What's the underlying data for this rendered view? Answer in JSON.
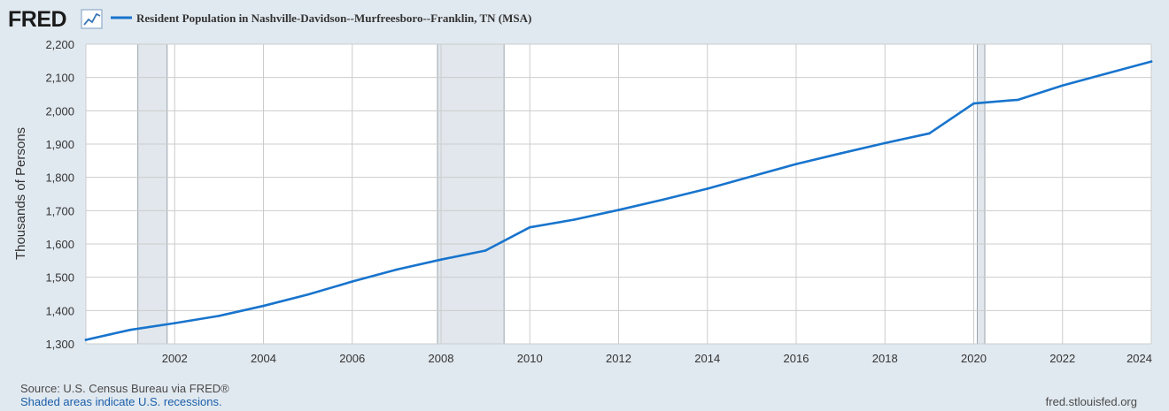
{
  "brand": {
    "name": "FRED",
    "icon": "line-chart-icon"
  },
  "legend": {
    "label": "Resident Population in Nashville-Davidson--Murfreesboro--Franklin, TN (MSA)"
  },
  "footer": {
    "source": "Source: U.S. Census Bureau via FRED®",
    "note": "Shaded areas indicate U.S. recessions.",
    "url": "fred.stlouisfed.org"
  },
  "colors": {
    "page_background": "#e1e9f0",
    "plot_background": "#ffffff",
    "series": "#1874cd",
    "recession": "#e1e7ec",
    "grid": "#cccccc",
    "note_text": "#1a5ea8"
  },
  "chart_data": {
    "type": "line",
    "title": "",
    "xlabel": "",
    "ylabel": "Thousands of Persons",
    "xlim": [
      2000,
      2024
    ],
    "ylim": [
      1300,
      2200
    ],
    "grid": true,
    "legend_position": "top-left",
    "y_ticks": [
      1300,
      1400,
      1500,
      1600,
      1700,
      1800,
      1900,
      2000,
      2100,
      2200
    ],
    "y_tick_labels": [
      "1,300",
      "1,400",
      "1,500",
      "1,600",
      "1,700",
      "1,800",
      "1,900",
      "2,000",
      "2,100",
      "2,200"
    ],
    "x_ticks": [
      2002,
      2004,
      2006,
      2008,
      2010,
      2012,
      2014,
      2016,
      2018,
      2020,
      2022,
      2024
    ],
    "x_tick_labels": [
      "2002",
      "2004",
      "2006",
      "2008",
      "2010",
      "2012",
      "2014",
      "2016",
      "2018",
      "2020",
      "2022",
      "2024"
    ],
    "recessions": [
      {
        "start": 2001.17,
        "end": 2001.83
      },
      {
        "start": 2007.92,
        "end": 2009.42
      },
      {
        "start": 2020.08,
        "end": 2020.25
      }
    ],
    "series": [
      {
        "name": "Resident Population in Nashville-Davidson--Murfreesboro--Franklin, TN (MSA)",
        "color": "#1874cd",
        "x": [
          2000,
          2001,
          2002,
          2003,
          2004,
          2005,
          2006,
          2007,
          2008,
          2009,
          2010,
          2011,
          2012,
          2013,
          2014,
          2015,
          2016,
          2017,
          2018,
          2019,
          2020,
          2021,
          2022,
          2023,
          2024
        ],
        "values": [
          1312,
          1342,
          1362,
          1384,
          1414,
          1448,
          1487,
          1523,
          1553,
          1580,
          1650,
          1673,
          1702,
          1733,
          1766,
          1803,
          1840,
          1872,
          1903,
          1932,
          2022,
          2033,
          2076,
          2112,
          2148
        ]
      }
    ]
  }
}
